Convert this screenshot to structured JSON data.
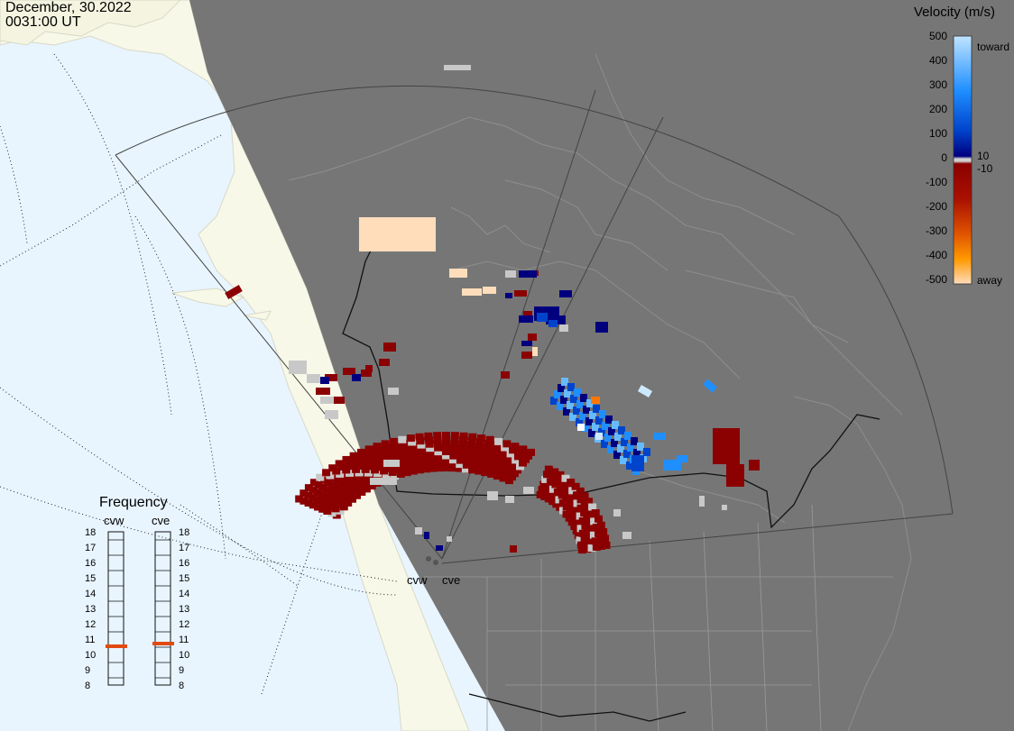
{
  "header": {
    "date": "December, 30.2022",
    "time": "0031:00 UT"
  },
  "colors": {
    "ocean": "#e8f5ff",
    "land": "#f8f8e8",
    "coverage": "#767676",
    "boundary": "#9a9a9a",
    "ground_scatter": "#c8c8c8"
  },
  "colorbar": {
    "title": "Velocity (m/s)",
    "tick_labels": [
      "500",
      "400",
      "300",
      "200",
      "100",
      "0",
      "-100",
      "-200",
      "-300",
      "-400",
      "-500"
    ],
    "side_labels": [
      "toward",
      "10",
      "-10",
      "away"
    ],
    "stops": [
      "#ffddbb",
      "#ff9900",
      "#dd4400",
      "#8b0000",
      "#d0d0d0",
      "#00007f",
      "#0044cc",
      "#1f8fff",
      "#bfe4ff"
    ]
  },
  "frequency": {
    "title": "Frequency",
    "radars": [
      "cvw",
      "cve"
    ],
    "scale": [
      "18",
      "17",
      "16",
      "15",
      "14",
      "13",
      "12",
      "11",
      "10",
      "9",
      "8"
    ],
    "cvw_mhz": 10.5,
    "cve_mhz": 10.7
  },
  "sites": [
    "cvw",
    "cve"
  ]
}
